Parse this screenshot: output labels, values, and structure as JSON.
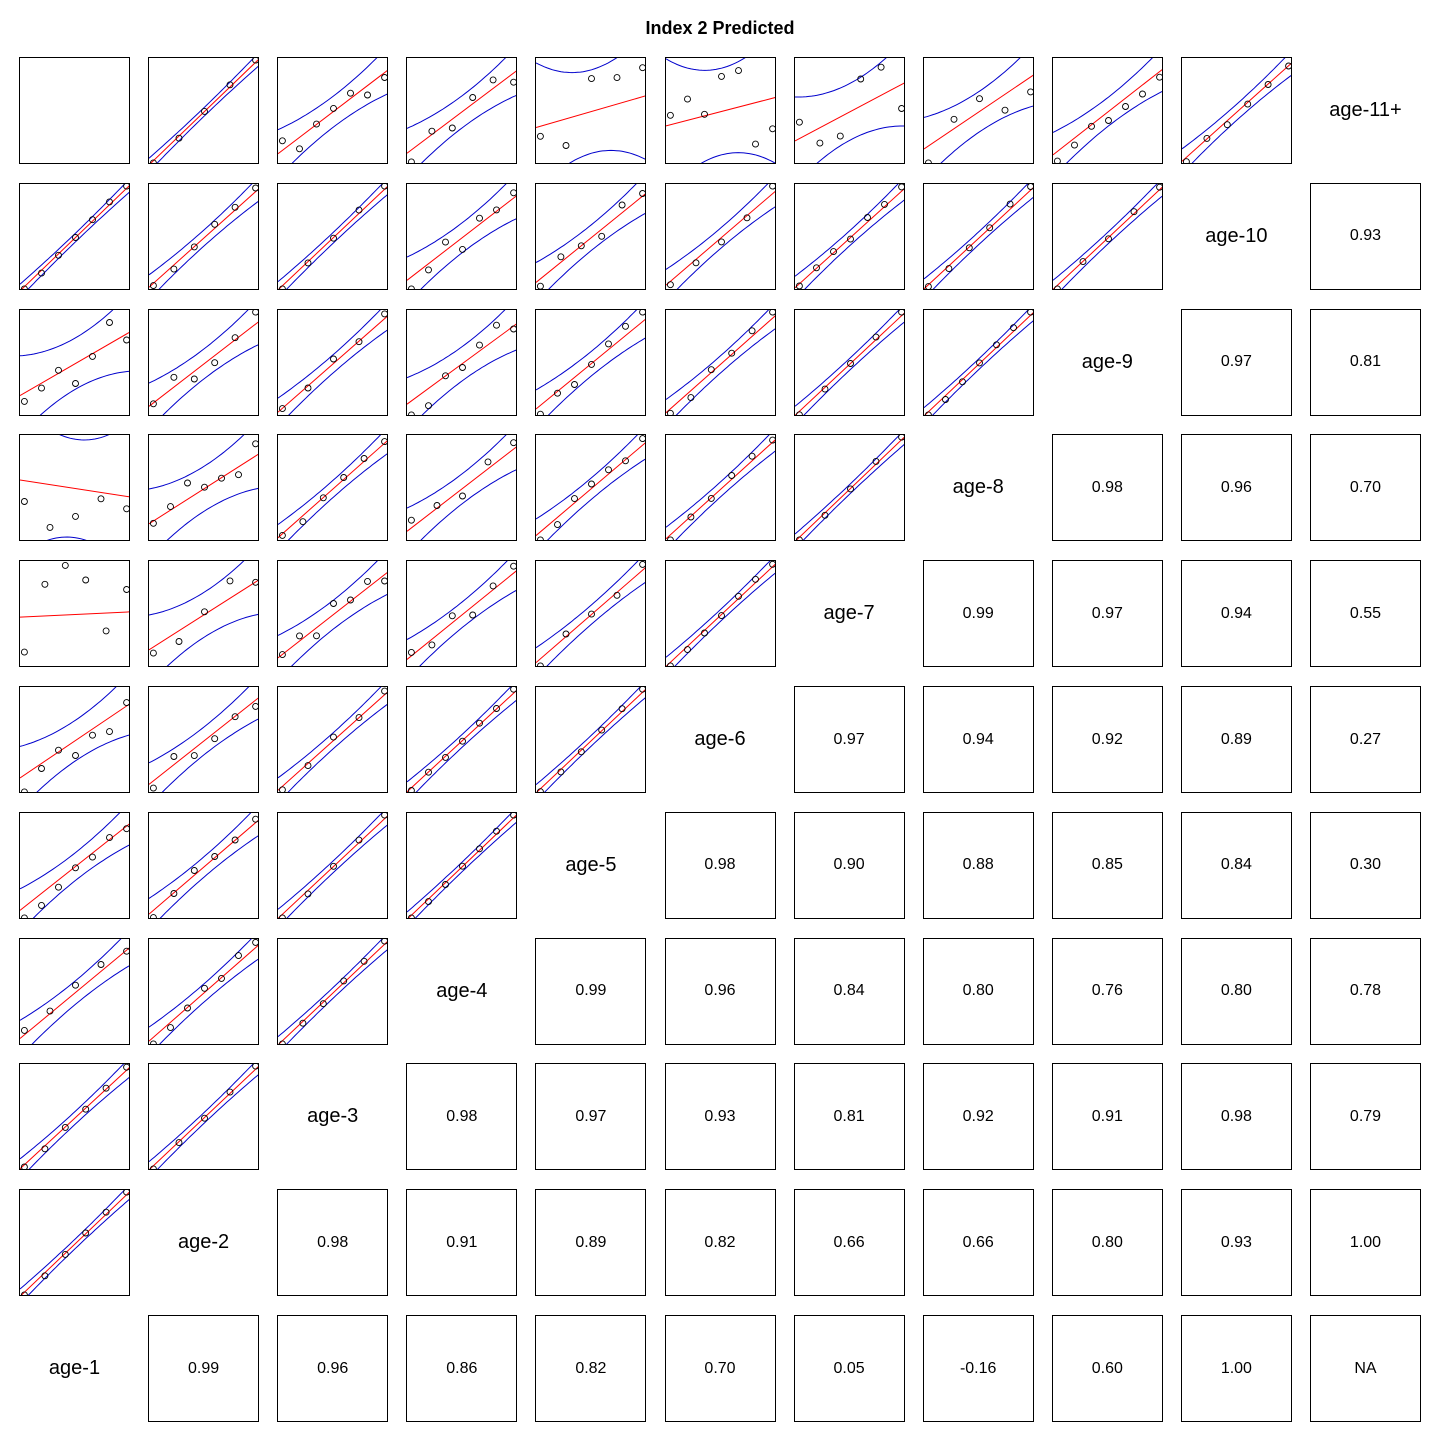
{
  "chart_data": {
    "type": "scatter",
    "title": "Index 2 Predicted",
    "variables": [
      "age-1",
      "age-2",
      "age-3",
      "age-4",
      "age-5",
      "age-6",
      "age-7",
      "age-8",
      "age-9",
      "age-10",
      "age-11+"
    ],
    "upper_panels": "pairwise correlation coefficient",
    "lower_panels": "scatter with fitted regression line (red) and confidence band (blue)",
    "correlations": [
      {
        "row": "age-1",
        "col": "age-2",
        "r": "0.99"
      },
      {
        "row": "age-1",
        "col": "age-3",
        "r": "0.96"
      },
      {
        "row": "age-1",
        "col": "age-4",
        "r": "0.86"
      },
      {
        "row": "age-1",
        "col": "age-5",
        "r": "0.82"
      },
      {
        "row": "age-1",
        "col": "age-6",
        "r": "0.70"
      },
      {
        "row": "age-1",
        "col": "age-7",
        "r": "0.05"
      },
      {
        "row": "age-1",
        "col": "age-8",
        "r": "-0.16"
      },
      {
        "row": "age-1",
        "col": "age-9",
        "r": "0.60"
      },
      {
        "row": "age-1",
        "col": "age-10",
        "r": "1.00"
      },
      {
        "row": "age-1",
        "col": "age-11+",
        "r": "NA"
      },
      {
        "row": "age-2",
        "col": "age-3",
        "r": "0.98"
      },
      {
        "row": "age-2",
        "col": "age-4",
        "r": "0.91"
      },
      {
        "row": "age-2",
        "col": "age-5",
        "r": "0.89"
      },
      {
        "row": "age-2",
        "col": "age-6",
        "r": "0.82"
      },
      {
        "row": "age-2",
        "col": "age-7",
        "r": "0.66"
      },
      {
        "row": "age-2",
        "col": "age-8",
        "r": "0.66"
      },
      {
        "row": "age-2",
        "col": "age-9",
        "r": "0.80"
      },
      {
        "row": "age-2",
        "col": "age-10",
        "r": "0.93"
      },
      {
        "row": "age-2",
        "col": "age-11+",
        "r": "1.00"
      },
      {
        "row": "age-3",
        "col": "age-4",
        "r": "0.98"
      },
      {
        "row": "age-3",
        "col": "age-5",
        "r": "0.97"
      },
      {
        "row": "age-3",
        "col": "age-6",
        "r": "0.93"
      },
      {
        "row": "age-3",
        "col": "age-7",
        "r": "0.81"
      },
      {
        "row": "age-3",
        "col": "age-8",
        "r": "0.92"
      },
      {
        "row": "age-3",
        "col": "age-9",
        "r": "0.91"
      },
      {
        "row": "age-3",
        "col": "age-10",
        "r": "0.98"
      },
      {
        "row": "age-3",
        "col": "age-11+",
        "r": "0.79"
      },
      {
        "row": "age-4",
        "col": "age-5",
        "r": "0.99"
      },
      {
        "row": "age-4",
        "col": "age-6",
        "r": "0.96"
      },
      {
        "row": "age-4",
        "col": "age-7",
        "r": "0.84"
      },
      {
        "row": "age-4",
        "col": "age-8",
        "r": "0.80"
      },
      {
        "row": "age-4",
        "col": "age-9",
        "r": "0.76"
      },
      {
        "row": "age-4",
        "col": "age-10",
        "r": "0.80"
      },
      {
        "row": "age-4",
        "col": "age-11+",
        "r": "0.78"
      },
      {
        "row": "age-5",
        "col": "age-6",
        "r": "0.98"
      },
      {
        "row": "age-5",
        "col": "age-7",
        "r": "0.90"
      },
      {
        "row": "age-5",
        "col": "age-8",
        "r": "0.88"
      },
      {
        "row": "age-5",
        "col": "age-9",
        "r": "0.85"
      },
      {
        "row": "age-5",
        "col": "age-10",
        "r": "0.84"
      },
      {
        "row": "age-5",
        "col": "age-11+",
        "r": "0.30"
      },
      {
        "row": "age-6",
        "col": "age-7",
        "r": "0.97"
      },
      {
        "row": "age-6",
        "col": "age-8",
        "r": "0.94"
      },
      {
        "row": "age-6",
        "col": "age-9",
        "r": "0.92"
      },
      {
        "row": "age-6",
        "col": "age-10",
        "r": "0.89"
      },
      {
        "row": "age-6",
        "col": "age-11+",
        "r": "0.27"
      },
      {
        "row": "age-7",
        "col": "age-8",
        "r": "0.99"
      },
      {
        "row": "age-7",
        "col": "age-9",
        "r": "0.97"
      },
      {
        "row": "age-7",
        "col": "age-10",
        "r": "0.94"
      },
      {
        "row": "age-7",
        "col": "age-11+",
        "r": "0.55"
      },
      {
        "row": "age-8",
        "col": "age-9",
        "r": "0.98"
      },
      {
        "row": "age-8",
        "col": "age-10",
        "r": "0.96"
      },
      {
        "row": "age-8",
        "col": "age-11+",
        "r": "0.70"
      },
      {
        "row": "age-9",
        "col": "age-10",
        "r": "0.97"
      },
      {
        "row": "age-9",
        "col": "age-11+",
        "r": "0.81"
      },
      {
        "row": "age-10",
        "col": "age-11+",
        "r": "0.93"
      }
    ],
    "colors": {
      "points": "#000000",
      "fit_line": "#ff0000",
      "confidence_band": "#0000cc"
    },
    "grid": false
  }
}
